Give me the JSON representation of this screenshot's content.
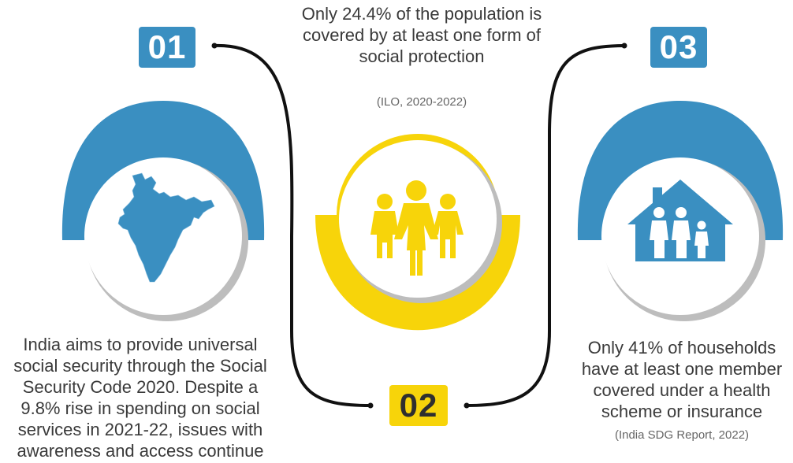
{
  "steps": [
    {
      "number": "01",
      "text": "India aims to provide universal social security through the Social Security Code 2020. Despite a 9.8% rise in spending on social services in 2021-22, issues with awareness and access continue",
      "icon": "india-map-icon",
      "color": "#3a8fc1"
    },
    {
      "number": "02",
      "text": "Only 24.4% of the population is covered by at least one form of social protection",
      "source": "(ILO, 2020-2022)",
      "icon": "people-group-icon",
      "color": "#f7d40a"
    },
    {
      "number": "03",
      "text": "Only 41% of households have at least one member covered under a health scheme or insurance",
      "source": "(India SDG Report, 2022)",
      "icon": "family-house-icon",
      "color": "#3a8fc1"
    }
  ]
}
